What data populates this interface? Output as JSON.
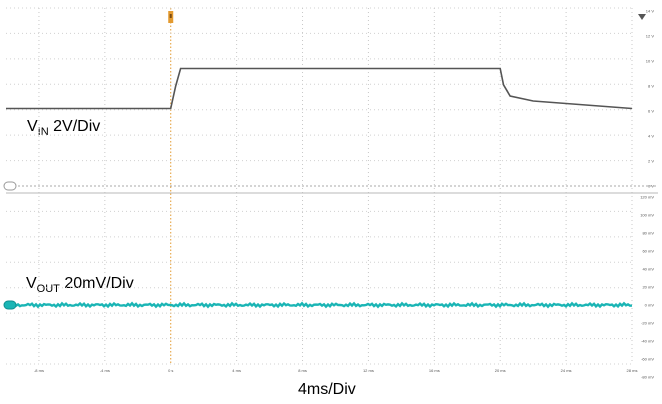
{
  "chart_data": {
    "type": "line",
    "title": "",
    "xlabel": "4ms/Div",
    "x_ticks": [
      "-8 ms",
      "-4 ms",
      "0 s",
      "4 ms",
      "8 ms",
      "12 ms",
      "16 ms",
      "20 ms",
      "24 ms",
      "28 ms"
    ],
    "xlim_ms": [
      -10,
      28
    ],
    "vin_axis_ticks": [
      "18 V",
      "16 V",
      "14 V",
      "12 V",
      "10 V",
      "8 V",
      "6 V",
      "4 V",
      "2 V",
      "0 V"
    ],
    "vout_axis_ticks": [
      "120 mV",
      "100 mV",
      "80 mV",
      "60 mV",
      "40 mV",
      "20 mV",
      "0 mV",
      "-20 mV",
      "-40 mV",
      "-60 mV",
      "-80 mV"
    ],
    "series": [
      {
        "label_main": "V",
        "label_sub": "IN",
        "label_rest": " 2V/Div",
        "color": "#555555",
        "unit": "V",
        "points": [
          [
            -10,
            6.2
          ],
          [
            0,
            6.2
          ],
          [
            0.3,
            8.0
          ],
          [
            0.6,
            9.4
          ],
          [
            20,
            9.4
          ],
          [
            20.2,
            8.1
          ],
          [
            20.6,
            7.2
          ],
          [
            22,
            6.8
          ],
          [
            28,
            6.2
          ]
        ]
      },
      {
        "label_main": "V",
        "label_sub": "OUT",
        "label_rest": " 20mV/Div",
        "color": "#1ab5b5",
        "unit": "mV",
        "points": [
          [
            -10,
            0
          ],
          [
            28,
            0
          ]
        ]
      }
    ]
  }
}
